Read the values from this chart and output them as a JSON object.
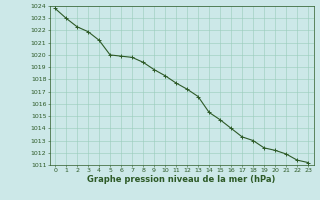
{
  "x": [
    0,
    1,
    2,
    3,
    4,
    5,
    6,
    7,
    8,
    9,
    10,
    11,
    12,
    13,
    14,
    15,
    16,
    17,
    18,
    19,
    20,
    21,
    22,
    23
  ],
  "y": [
    1023.8,
    1023.0,
    1022.3,
    1021.9,
    1021.2,
    1020.0,
    1019.9,
    1019.8,
    1019.4,
    1018.8,
    1018.3,
    1017.7,
    1017.2,
    1016.6,
    1015.3,
    1014.7,
    1014.0,
    1013.3,
    1013.0,
    1012.4,
    1012.2,
    1011.9,
    1011.4,
    1011.2
  ],
  "ylim": [
    1011,
    1024
  ],
  "xlim": [
    -0.5,
    23.5
  ],
  "yticks": [
    1011,
    1012,
    1013,
    1014,
    1015,
    1016,
    1017,
    1018,
    1019,
    1020,
    1021,
    1022,
    1023,
    1024
  ],
  "xticks": [
    0,
    1,
    2,
    3,
    4,
    5,
    6,
    7,
    8,
    9,
    10,
    11,
    12,
    13,
    14,
    15,
    16,
    17,
    18,
    19,
    20,
    21,
    22,
    23
  ],
  "line_color": "#2d5a27",
  "marker_color": "#2d5a27",
  "bg_color": "#cce8e8",
  "grid_color": "#99ccbb",
  "xlabel": "Graphe pression niveau de la mer (hPa)",
  "xlabel_color": "#2d5a27",
  "tick_color": "#2d5a27",
  "tick_fontsize": 4.5,
  "xlabel_fontsize": 6.0,
  "line_width": 0.8,
  "marker_size": 2.5,
  "marker_edge_width": 0.7
}
